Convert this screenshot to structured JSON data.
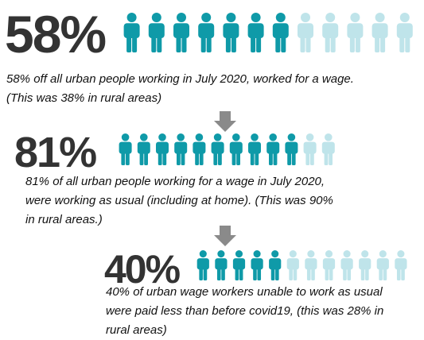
{
  "chart_data": [
    {
      "type": "pictograph",
      "value": 58,
      "value_label": "58%",
      "color": "#0f9aa8",
      "empty_color": "#bfe4ea",
      "caption": [
        "58% off all urban people working in July 2020, worked for a wage.",
        "(This was 38% in rural areas)"
      ]
    },
    {
      "type": "pictograph",
      "value": 81,
      "value_label": "81%",
      "color": "#0f9aa8",
      "empty_color": "#bfe4ea",
      "caption": [
        "81% of all urban people working for a wage in July 2020,",
        "were working as usual (including at home). (This was 90%",
        "in rural areas.)"
      ]
    },
    {
      "type": "pictograph",
      "value": 40,
      "value_label": "40%",
      "color": "#0f9aa8",
      "empty_color": "#bfe4ea",
      "caption": [
        "40% of urban wage workers unable to work as usual",
        "were paid less than before covid19, (this was 28% in",
        "rural areas)"
      ]
    }
  ]
}
